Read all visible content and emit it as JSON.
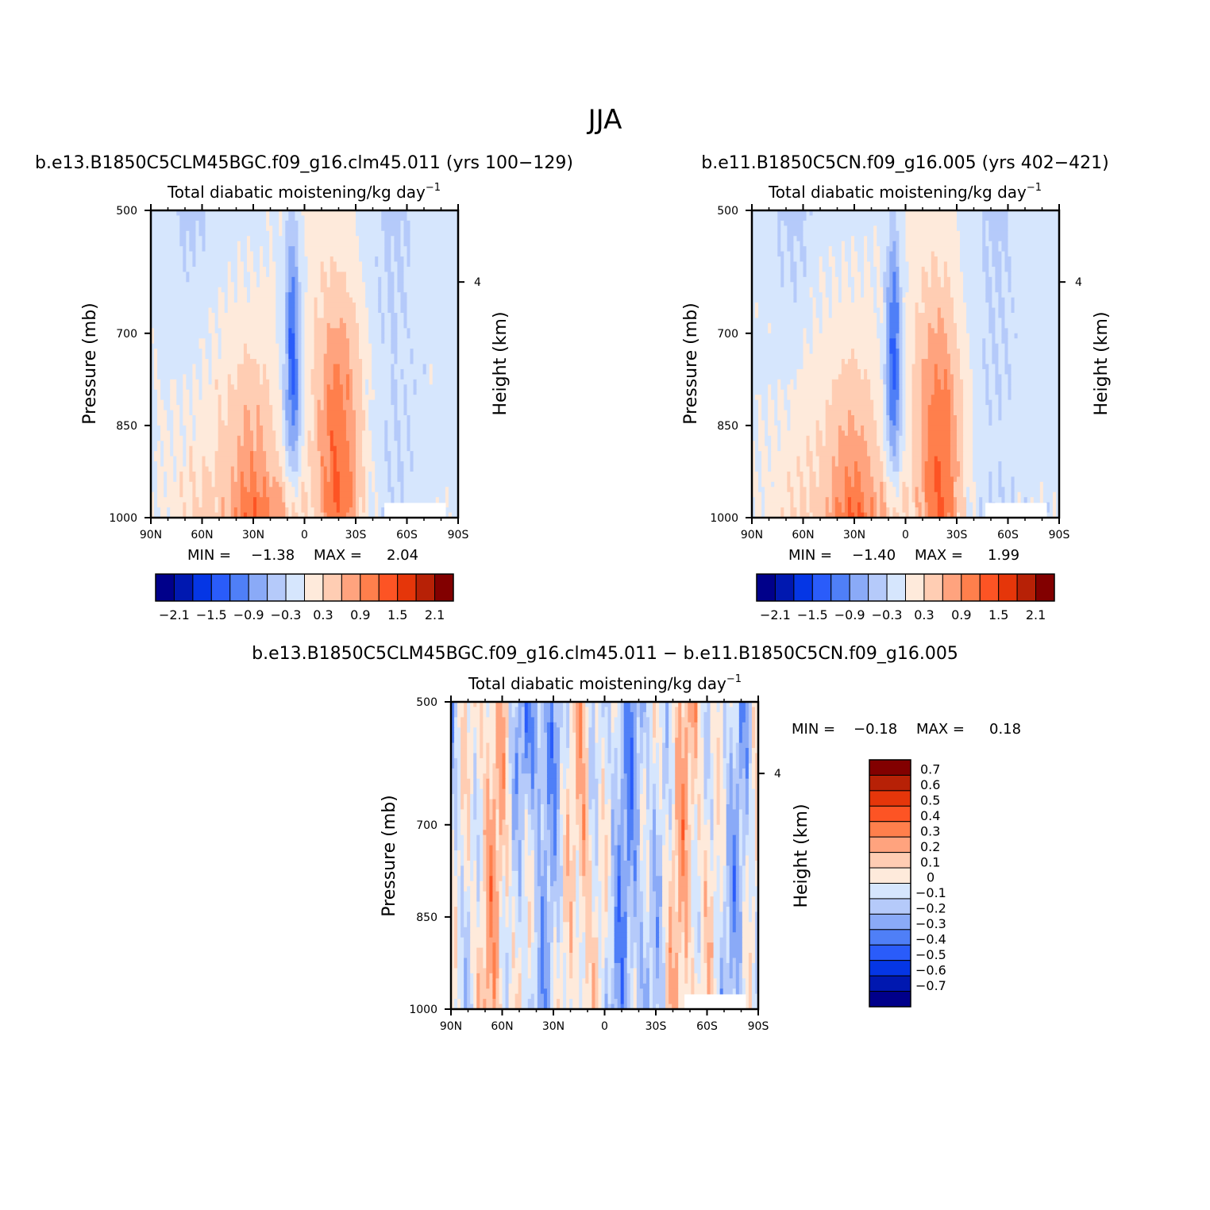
{
  "title": "JJA",
  "colors": {
    "levels": [
      "#00008a",
      "#0018b0",
      "#0536e5",
      "#2a5cfa",
      "#4f7ff7",
      "#8aaaf7",
      "#b5cafa",
      "#d6e6fd",
      "#feeadb",
      "#ffcdb3",
      "#ffa37e",
      "#ff7f4c",
      "#fd5424",
      "#e5360a",
      "#b72106",
      "#820000"
    ]
  },
  "chart_data": [
    {
      "type": "heatmap",
      "title": "b.e13.B1850C5CLM45BGC.f09_g16.clm45.011 (yrs 100−129)",
      "subtitle_main": "Total diabatic moistening/kg day",
      "subtitle_sup": "−1",
      "ylabel": "Pressure (mb)",
      "y2label": "Height (km)",
      "xticks": [
        "90N",
        "60N",
        "30N",
        "0",
        "30S",
        "60S",
        "90S"
      ],
      "yticks": [
        "500",
        "700",
        "850",
        "1000"
      ],
      "y2ticks": [
        "4"
      ],
      "min_label": "MIN =",
      "min_value": "−1.38",
      "max_label": "MAX =",
      "max_value": "2.04",
      "min": -1.38,
      "max": 2.04,
      "colorbar_labels": [
        "−2.1",
        "−1.5",
        "−0.9",
        "−0.3",
        "0.3",
        "0.9",
        "1.5",
        "2.1"
      ]
    },
    {
      "type": "heatmap",
      "title": "b.e11.B1850C5CN.f09_g16.005 (yrs 402−421)",
      "subtitle_main": "Total diabatic moistening/kg day",
      "subtitle_sup": "−1",
      "ylabel": "Pressure (mb)",
      "y2label": "Height (km)",
      "xticks": [
        "90N",
        "60N",
        "30N",
        "0",
        "30S",
        "60S",
        "90S"
      ],
      "yticks": [
        "500",
        "700",
        "850",
        "1000"
      ],
      "y2ticks": [
        "4"
      ],
      "min_label": "MIN =",
      "min_value": "−1.40",
      "max_label": "MAX =",
      "max_value": "1.99",
      "min": -1.4,
      "max": 1.99,
      "colorbar_labels": [
        "−2.1",
        "−1.5",
        "−0.9",
        "−0.3",
        "0.3",
        "0.9",
        "1.5",
        "2.1"
      ]
    },
    {
      "type": "heatmap",
      "title": "b.e13.B1850C5CLM45BGC.f09_g16.clm45.011 − b.e11.B1850C5CN.f09_g16.005",
      "subtitle_main": "Total diabatic moistening/kg day",
      "subtitle_sup": "−1",
      "ylabel": "Pressure (mb)",
      "y2label": "Height (km)",
      "xticks": [
        "90N",
        "60N",
        "30N",
        "0",
        "30S",
        "60S",
        "90S"
      ],
      "yticks": [
        "500",
        "700",
        "850",
        "1000"
      ],
      "y2ticks": [
        "4"
      ],
      "min_label": "MIN =",
      "min_value": "−0.18",
      "max_label": "MAX =",
      "max_value": "0.18",
      "min": -0.18,
      "max": 0.18,
      "colorbar_labels": [
        "0.7",
        "0.6",
        "0.5",
        "0.4",
        "0.3",
        "0.2",
        "0.1",
        "0",
        "−0.1",
        "−0.2",
        "−0.3",
        "−0.4",
        "−0.5",
        "−0.6",
        "−0.7"
      ]
    }
  ]
}
